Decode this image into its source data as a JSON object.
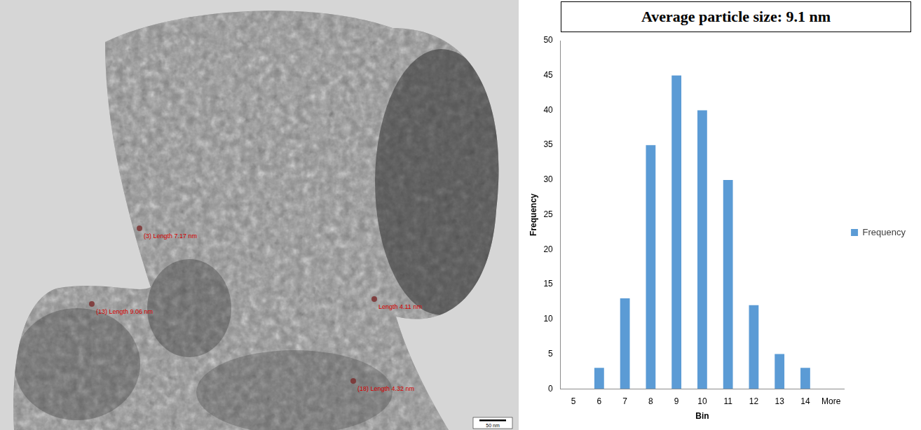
{
  "panel_image": {
    "scale_bar": "50 nm",
    "labels": [
      "(3) Length 7.17 nm",
      "(13) Length 9.06 nm",
      "Length 4.11 nm",
      "(18) Length 4.32 nm"
    ]
  },
  "chart_data": {
    "type": "bar",
    "title": "Average particle size: 9.1 nm",
    "x_label": "Bin",
    "y_label": "Frequency",
    "categories": [
      "5",
      "6",
      "7",
      "8",
      "9",
      "10",
      "11",
      "12",
      "13",
      "14",
      "More"
    ],
    "series": [
      {
        "name": "Frequency",
        "color": "#5b9bd5",
        "values": [
          0,
          3,
          13,
          35,
          45,
          40,
          30,
          12,
          5,
          3,
          0
        ]
      }
    ],
    "ylim": [
      0,
      50
    ],
    "yticks": [
      0,
      5,
      10,
      15,
      20,
      25,
      30,
      35,
      40,
      45,
      50
    ],
    "grid": false,
    "legend": "right"
  }
}
